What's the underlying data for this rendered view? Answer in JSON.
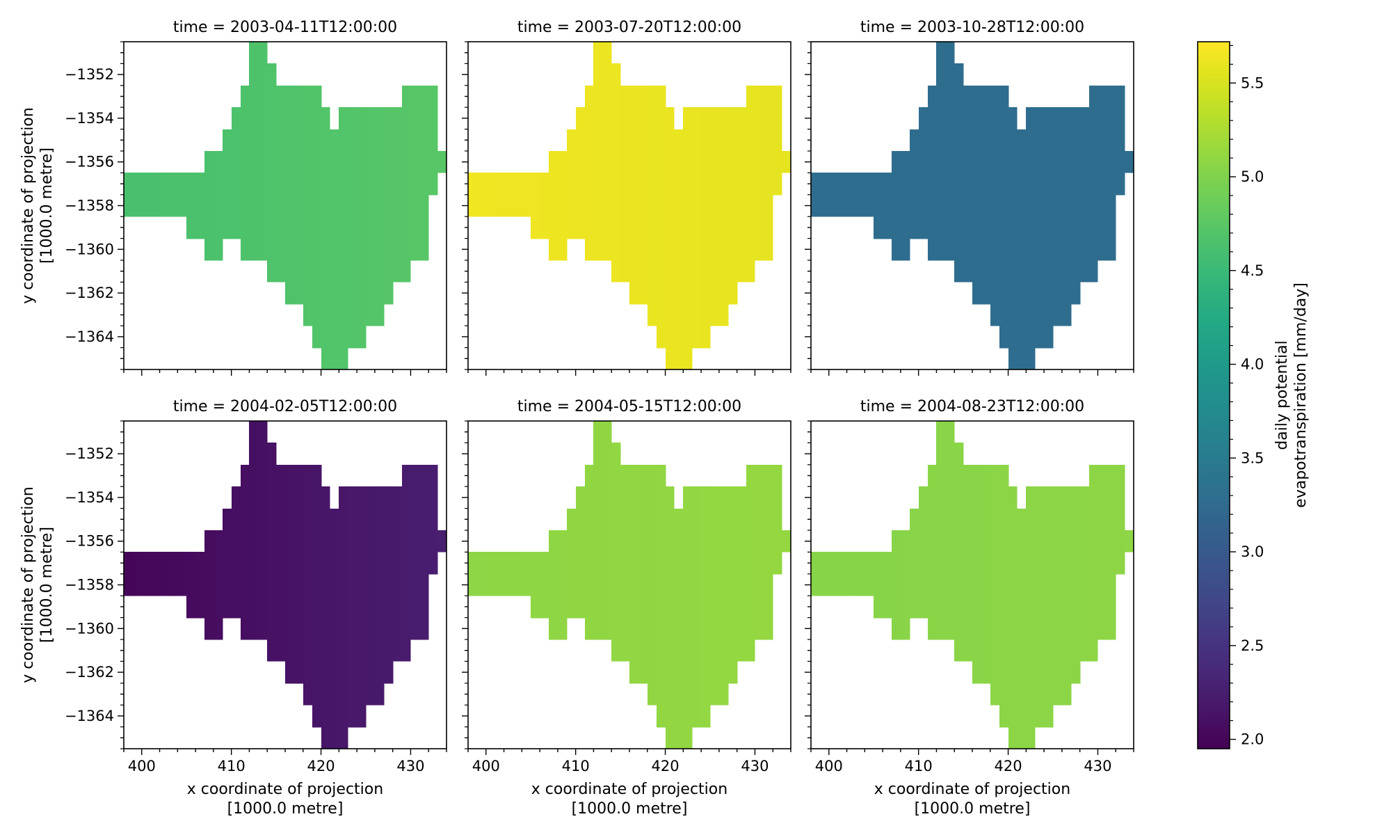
{
  "chart_data": {
    "type": "heatmap",
    "x_label_line1": "x coordinate of projection",
    "x_label_line2": "[1000.0 metre]",
    "y_label_line1": "y coordinate of projection",
    "y_label_line2": "[1000.0 metre]",
    "x_range": [
      398,
      434
    ],
    "y_range": [
      -1365.5,
      -1350.5
    ],
    "x_ticks": [
      400,
      410,
      420,
      430
    ],
    "y_ticks": [
      -1352,
      -1354,
      -1356,
      -1358,
      -1360,
      -1362,
      -1364
    ],
    "y_tick_labels": [
      "−1352",
      "−1354",
      "−1356",
      "−1358",
      "−1360",
      "−1362",
      "−1364"
    ],
    "grid": false,
    "colorbar": {
      "label_line1": "daily potential",
      "label_line2": "evapotranspiration [mm/day]",
      "range": [
        1.95,
        5.72
      ],
      "ticks": [
        2.0,
        2.5,
        3.0,
        3.5,
        4.0,
        4.5,
        5.0,
        5.5
      ],
      "tick_labels": [
        "2.0",
        "2.5",
        "3.0",
        "3.5",
        "4.0",
        "4.5",
        "5.0",
        "5.5"
      ],
      "colormap": "viridis"
    },
    "panels": [
      {
        "title": "time = 2003-04-11T12:00:00",
        "value_west": 4.62,
        "value_east": 4.74
      },
      {
        "title": "time = 2003-07-20T12:00:00",
        "value_west": 5.65,
        "value_east": 5.58
      },
      {
        "title": "time = 2003-10-28T12:00:00",
        "value_west": 3.28,
        "value_east": 3.28
      },
      {
        "title": "time = 2004-02-05T12:00:00",
        "value_west": 2.0,
        "value_east": 2.25
      },
      {
        "title": "time = 2004-05-15T12:00:00",
        "value_west": 5.08,
        "value_east": 5.12
      },
      {
        "title": "time = 2004-08-23T12:00:00",
        "value_west": 5.04,
        "value_east": 5.08
      }
    ]
  }
}
